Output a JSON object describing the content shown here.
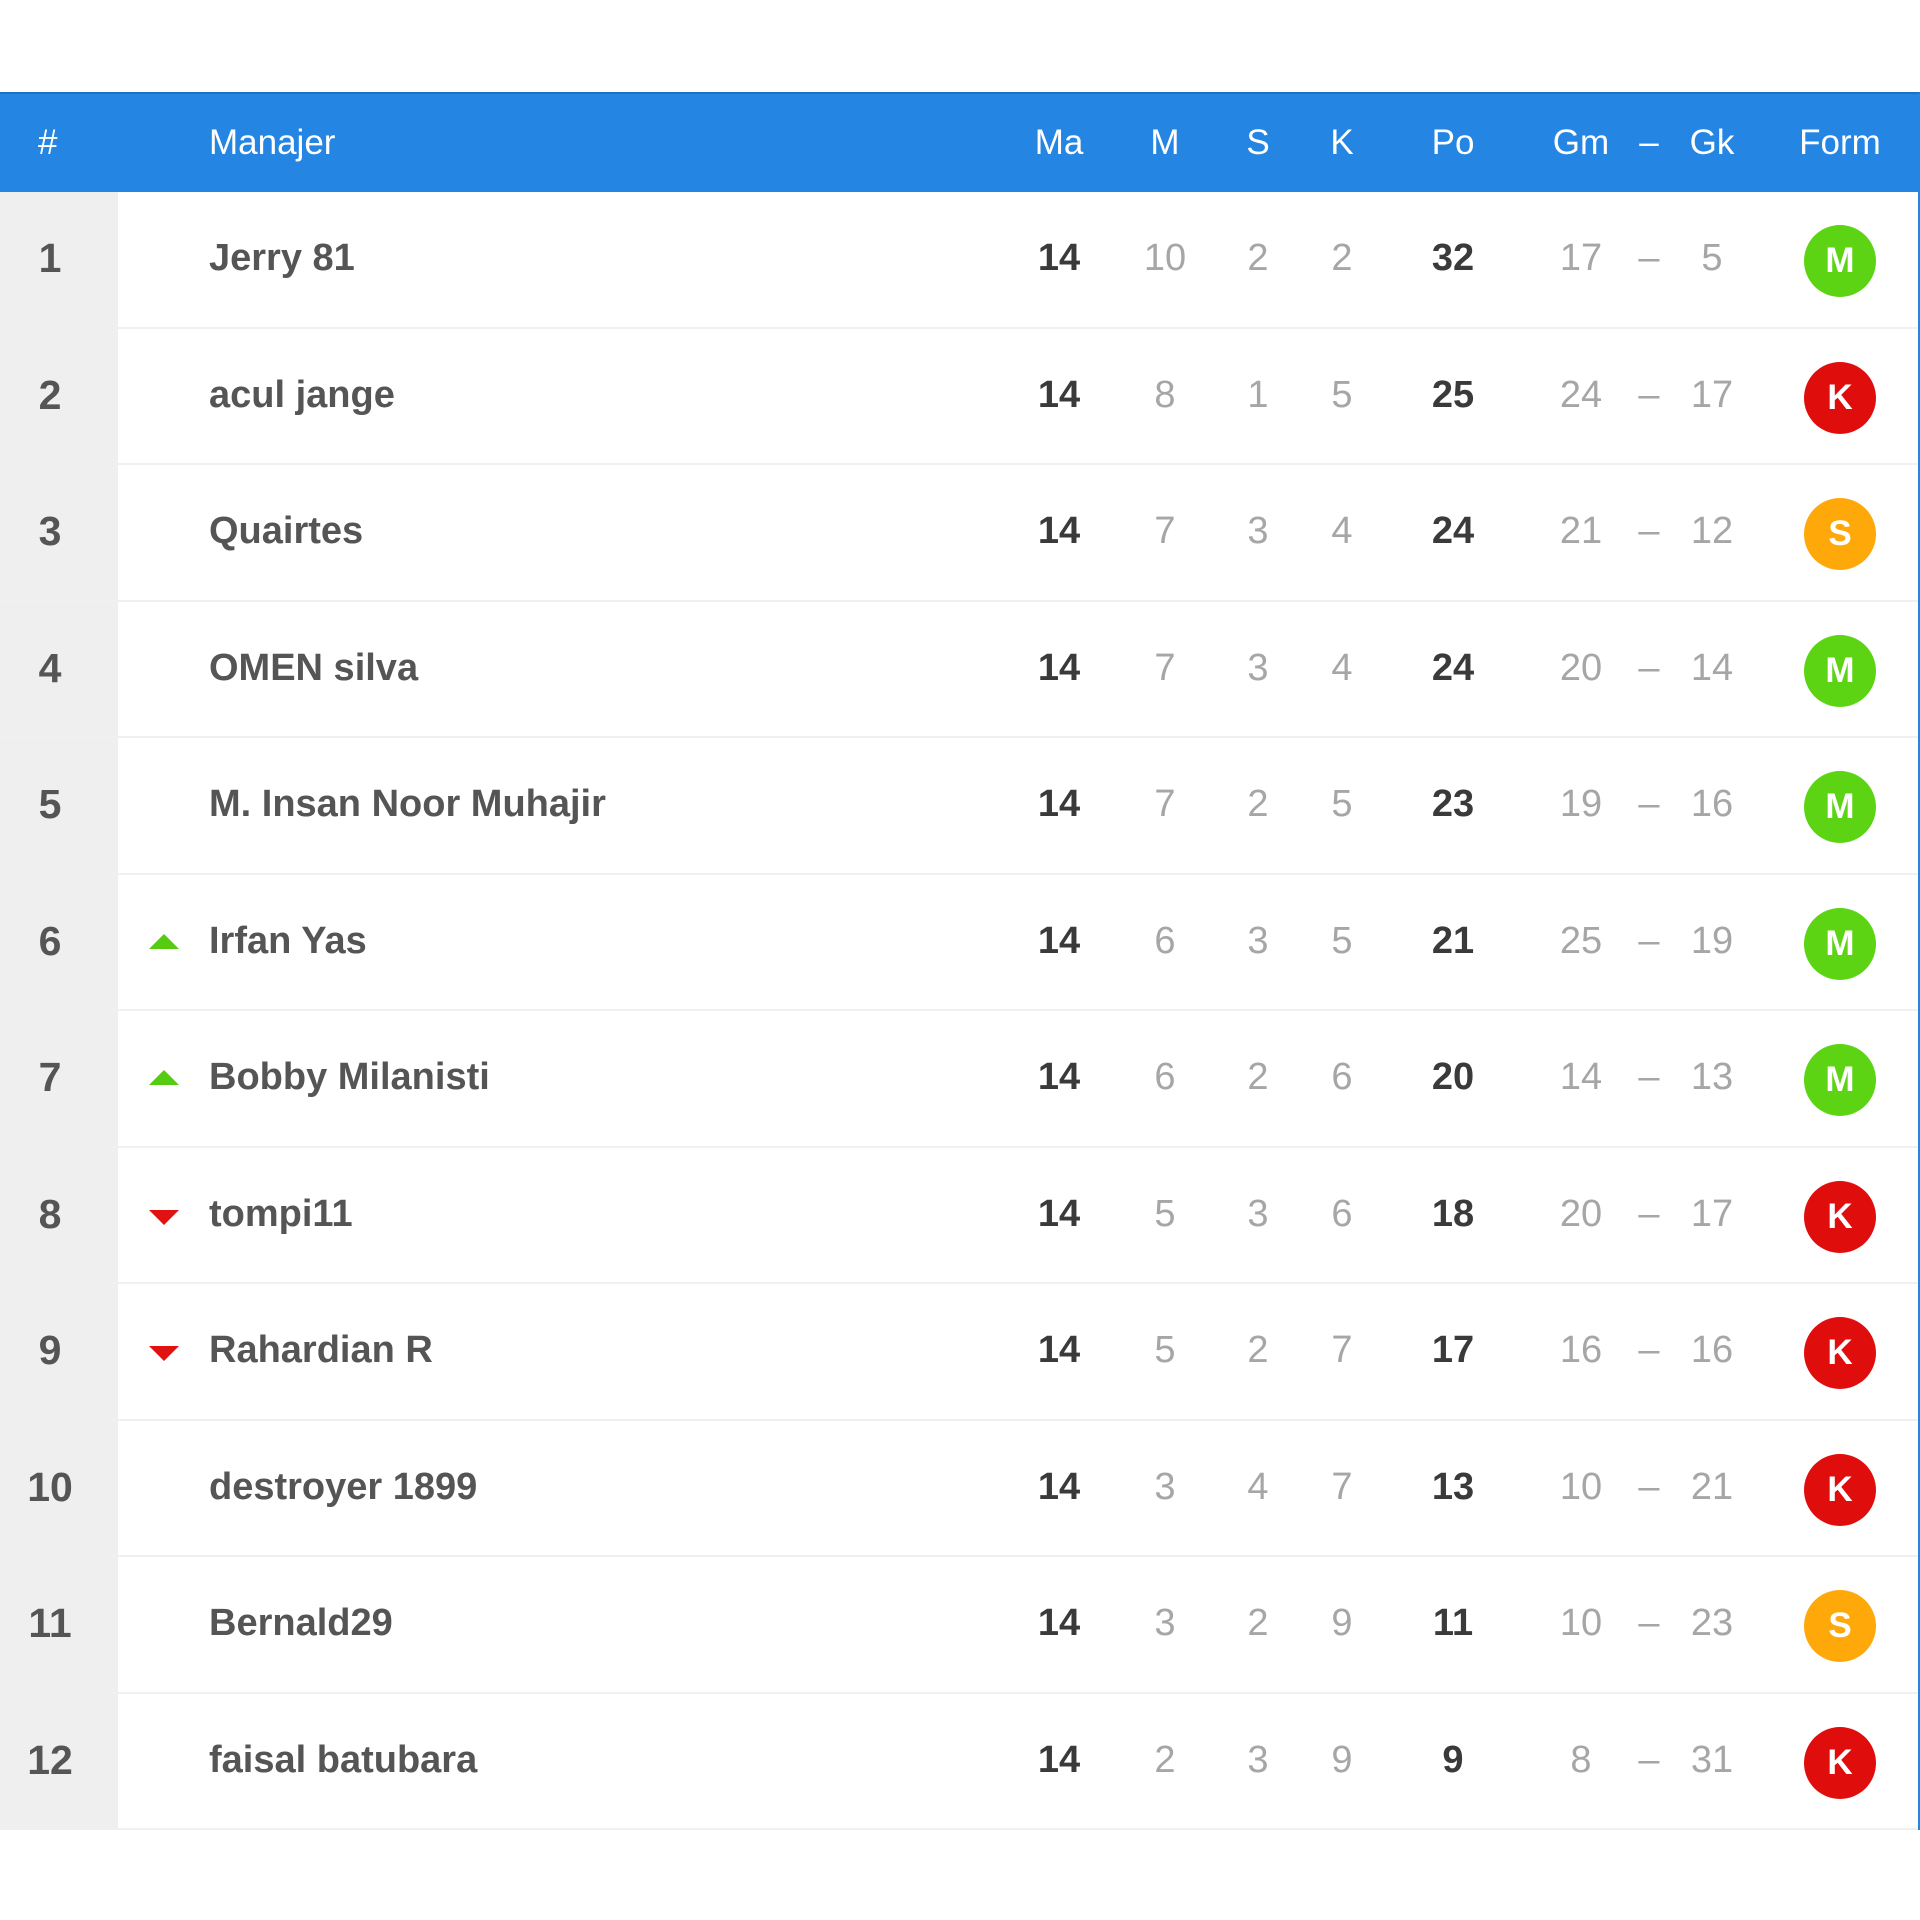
{
  "header": {
    "rank": "#",
    "manager": "Manajer",
    "played": "Ma",
    "won": "M",
    "drawn": "S",
    "lost": "K",
    "points": "Po",
    "goals_for": "Gm",
    "dash": "–",
    "goals_against": "Gk",
    "form": "Form"
  },
  "colors": {
    "header_bg": "#2585e3",
    "form_win": "#5cd414",
    "form_draw": "#ffa80a",
    "form_loss": "#e00d0d",
    "trend_up": "#55cc11",
    "trend_down": "#e01212"
  },
  "rows": [
    {
      "rank": "1",
      "name": "Jerry 81",
      "trend": "none",
      "played": "14",
      "won": "10",
      "drawn": "2",
      "lost": "2",
      "points": "32",
      "gf": "17",
      "dash": "–",
      "ga": "5",
      "form": "M",
      "form_type": "win"
    },
    {
      "rank": "2",
      "name": "acul jange",
      "trend": "none",
      "played": "14",
      "won": "8",
      "drawn": "1",
      "lost": "5",
      "points": "25",
      "gf": "24",
      "dash": "–",
      "ga": "17",
      "form": "K",
      "form_type": "loss"
    },
    {
      "rank": "3",
      "name": "Quairtes",
      "trend": "none",
      "played": "14",
      "won": "7",
      "drawn": "3",
      "lost": "4",
      "points": "24",
      "gf": "21",
      "dash": "–",
      "ga": "12",
      "form": "S",
      "form_type": "draw"
    },
    {
      "rank": "4",
      "name": "OMEN silva",
      "trend": "none",
      "played": "14",
      "won": "7",
      "drawn": "3",
      "lost": "4",
      "points": "24",
      "gf": "20",
      "dash": "–",
      "ga": "14",
      "form": "M",
      "form_type": "win"
    },
    {
      "rank": "5",
      "name": "M. Insan Noor Muhajir",
      "trend": "none",
      "played": "14",
      "won": "7",
      "drawn": "2",
      "lost": "5",
      "points": "23",
      "gf": "19",
      "dash": "–",
      "ga": "16",
      "form": "M",
      "form_type": "win"
    },
    {
      "rank": "6",
      "name": "Irfan Yas",
      "trend": "up",
      "played": "14",
      "won": "6",
      "drawn": "3",
      "lost": "5",
      "points": "21",
      "gf": "25",
      "dash": "–",
      "ga": "19",
      "form": "M",
      "form_type": "win"
    },
    {
      "rank": "7",
      "name": "Bobby Milanisti",
      "trend": "up",
      "played": "14",
      "won": "6",
      "drawn": "2",
      "lost": "6",
      "points": "20",
      "gf": "14",
      "dash": "–",
      "ga": "13",
      "form": "M",
      "form_type": "win"
    },
    {
      "rank": "8",
      "name": "tompi11",
      "trend": "down",
      "played": "14",
      "won": "5",
      "drawn": "3",
      "lost": "6",
      "points": "18",
      "gf": "20",
      "dash": "–",
      "ga": "17",
      "form": "K",
      "form_type": "loss"
    },
    {
      "rank": "9",
      "name": "Rahardian R",
      "trend": "down",
      "played": "14",
      "won": "5",
      "drawn": "2",
      "lost": "7",
      "points": "17",
      "gf": "16",
      "dash": "–",
      "ga": "16",
      "form": "K",
      "form_type": "loss"
    },
    {
      "rank": "10",
      "name": "destroyer 1899",
      "trend": "none",
      "played": "14",
      "won": "3",
      "drawn": "4",
      "lost": "7",
      "points": "13",
      "gf": "10",
      "dash": "–",
      "ga": "21",
      "form": "K",
      "form_type": "loss"
    },
    {
      "rank": "11",
      "name": "Bernald29",
      "trend": "none",
      "played": "14",
      "won": "3",
      "drawn": "2",
      "lost": "9",
      "points": "11",
      "gf": "10",
      "dash": "–",
      "ga": "23",
      "form": "S",
      "form_type": "draw"
    },
    {
      "rank": "12",
      "name": "faisal batubara",
      "trend": "none",
      "played": "14",
      "won": "2",
      "drawn": "3",
      "lost": "9",
      "points": "9",
      "gf": "8",
      "dash": "–",
      "ga": "31",
      "form": "K",
      "form_type": "loss"
    }
  ]
}
